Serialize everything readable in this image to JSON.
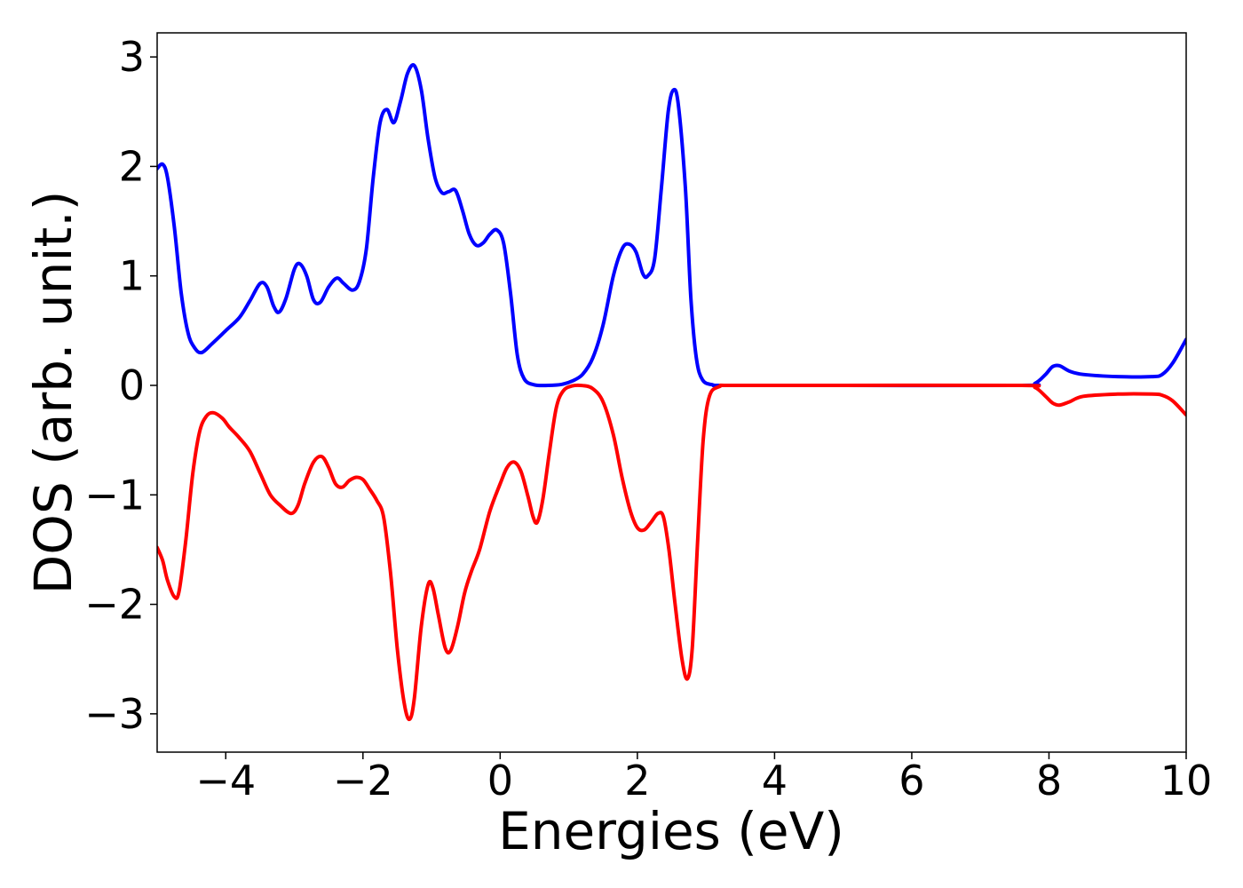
{
  "chart_data": {
    "type": "line",
    "title": "",
    "xlabel": "Energies (eV)",
    "ylabel": "DOS (arb. unit.)",
    "xlim": [
      -5,
      10
    ],
    "ylim": [
      -3.35,
      3.22
    ],
    "xticks": [
      -4,
      -2,
      0,
      2,
      4,
      6,
      8,
      10
    ],
    "xtick_labels": [
      "−4",
      "−2",
      "0",
      "2",
      "4",
      "6",
      "8",
      "10"
    ],
    "yticks": [
      3,
      2,
      1,
      0,
      -1,
      -2,
      -3
    ],
    "ytick_labels": [
      "3",
      "2",
      "1",
      "0",
      "−1",
      "−2",
      "−3"
    ],
    "grid": false,
    "legend": "none",
    "series": [
      {
        "color": "#0000ff",
        "points": [
          [
            -5.0,
            1.98
          ],
          [
            -4.92,
            2.02
          ],
          [
            -4.85,
            1.9
          ],
          [
            -4.75,
            1.45
          ],
          [
            -4.65,
            0.85
          ],
          [
            -4.55,
            0.48
          ],
          [
            -4.45,
            0.34
          ],
          [
            -4.35,
            0.3
          ],
          [
            -4.2,
            0.38
          ],
          [
            -4.0,
            0.5
          ],
          [
            -3.8,
            0.62
          ],
          [
            -3.65,
            0.77
          ],
          [
            -3.5,
            0.93
          ],
          [
            -3.4,
            0.9
          ],
          [
            -3.3,
            0.72
          ],
          [
            -3.22,
            0.67
          ],
          [
            -3.12,
            0.8
          ],
          [
            -3.0,
            1.06
          ],
          [
            -2.92,
            1.11
          ],
          [
            -2.82,
            1.0
          ],
          [
            -2.72,
            0.78
          ],
          [
            -2.62,
            0.76
          ],
          [
            -2.5,
            0.9
          ],
          [
            -2.38,
            0.98
          ],
          [
            -2.28,
            0.93
          ],
          [
            -2.15,
            0.87
          ],
          [
            -2.05,
            0.95
          ],
          [
            -1.95,
            1.25
          ],
          [
            -1.85,
            1.9
          ],
          [
            -1.75,
            2.4
          ],
          [
            -1.65,
            2.52
          ],
          [
            -1.55,
            2.4
          ],
          [
            -1.45,
            2.6
          ],
          [
            -1.35,
            2.85
          ],
          [
            -1.25,
            2.92
          ],
          [
            -1.15,
            2.7
          ],
          [
            -1.05,
            2.25
          ],
          [
            -0.95,
            1.9
          ],
          [
            -0.85,
            1.76
          ],
          [
            -0.75,
            1.77
          ],
          [
            -0.65,
            1.78
          ],
          [
            -0.55,
            1.6
          ],
          [
            -0.45,
            1.38
          ],
          [
            -0.35,
            1.28
          ],
          [
            -0.25,
            1.3
          ],
          [
            -0.15,
            1.38
          ],
          [
            -0.05,
            1.42
          ],
          [
            0.05,
            1.3
          ],
          [
            0.15,
            0.85
          ],
          [
            0.25,
            0.28
          ],
          [
            0.35,
            0.06
          ],
          [
            0.5,
            0.005
          ],
          [
            0.7,
            0.0
          ],
          [
            0.9,
            0.01
          ],
          [
            1.05,
            0.04
          ],
          [
            1.2,
            0.1
          ],
          [
            1.35,
            0.25
          ],
          [
            1.5,
            0.55
          ],
          [
            1.65,
            1.0
          ],
          [
            1.78,
            1.25
          ],
          [
            1.88,
            1.29
          ],
          [
            1.98,
            1.22
          ],
          [
            2.08,
            1.02
          ],
          [
            2.15,
            1.0
          ],
          [
            2.25,
            1.15
          ],
          [
            2.35,
            1.8
          ],
          [
            2.45,
            2.5
          ],
          [
            2.53,
            2.7
          ],
          [
            2.6,
            2.55
          ],
          [
            2.7,
            1.8
          ],
          [
            2.78,
            0.8
          ],
          [
            2.86,
            0.25
          ],
          [
            2.95,
            0.05
          ],
          [
            3.1,
            0.005
          ],
          [
            3.3,
            0.0
          ],
          [
            5.0,
            0.0
          ],
          [
            7.6,
            0.0
          ],
          [
            7.8,
            0.02
          ],
          [
            7.95,
            0.1
          ],
          [
            8.05,
            0.17
          ],
          [
            8.15,
            0.18
          ],
          [
            8.3,
            0.13
          ],
          [
            8.5,
            0.1
          ],
          [
            9.0,
            0.08
          ],
          [
            9.5,
            0.08
          ],
          [
            9.65,
            0.1
          ],
          [
            9.8,
            0.2
          ],
          [
            10.0,
            0.42
          ]
        ]
      },
      {
        "color": "#ff0000",
        "points": [
          [
            -5.0,
            -1.48
          ],
          [
            -4.92,
            -1.6
          ],
          [
            -4.85,
            -1.78
          ],
          [
            -4.75,
            -1.93
          ],
          [
            -4.68,
            -1.88
          ],
          [
            -4.58,
            -1.4
          ],
          [
            -4.48,
            -0.8
          ],
          [
            -4.38,
            -0.42
          ],
          [
            -4.28,
            -0.28
          ],
          [
            -4.18,
            -0.25
          ],
          [
            -4.05,
            -0.3
          ],
          [
            -3.95,
            -0.38
          ],
          [
            -3.8,
            -0.48
          ],
          [
            -3.65,
            -0.6
          ],
          [
            -3.5,
            -0.8
          ],
          [
            -3.35,
            -1.0
          ],
          [
            -3.2,
            -1.1
          ],
          [
            -3.05,
            -1.17
          ],
          [
            -2.95,
            -1.1
          ],
          [
            -2.85,
            -0.9
          ],
          [
            -2.72,
            -0.7
          ],
          [
            -2.6,
            -0.65
          ],
          [
            -2.5,
            -0.75
          ],
          [
            -2.4,
            -0.9
          ],
          [
            -2.3,
            -0.93
          ],
          [
            -2.2,
            -0.87
          ],
          [
            -2.1,
            -0.84
          ],
          [
            -2.0,
            -0.86
          ],
          [
            -1.9,
            -0.95
          ],
          [
            -1.8,
            -1.05
          ],
          [
            -1.7,
            -1.2
          ],
          [
            -1.6,
            -1.7
          ],
          [
            -1.5,
            -2.4
          ],
          [
            -1.4,
            -2.9
          ],
          [
            -1.32,
            -3.05
          ],
          [
            -1.25,
            -2.85
          ],
          [
            -1.15,
            -2.2
          ],
          [
            -1.05,
            -1.82
          ],
          [
            -0.98,
            -1.85
          ],
          [
            -0.9,
            -2.1
          ],
          [
            -0.8,
            -2.4
          ],
          [
            -0.72,
            -2.42
          ],
          [
            -0.62,
            -2.2
          ],
          [
            -0.52,
            -1.9
          ],
          [
            -0.42,
            -1.7
          ],
          [
            -0.3,
            -1.5
          ],
          [
            -0.15,
            -1.15
          ],
          [
            0.0,
            -0.9
          ],
          [
            0.1,
            -0.75
          ],
          [
            0.2,
            -0.7
          ],
          [
            0.3,
            -0.78
          ],
          [
            0.4,
            -1.0
          ],
          [
            0.48,
            -1.2
          ],
          [
            0.54,
            -1.25
          ],
          [
            0.62,
            -1.05
          ],
          [
            0.72,
            -0.6
          ],
          [
            0.82,
            -0.2
          ],
          [
            0.92,
            -0.05
          ],
          [
            1.05,
            -0.005
          ],
          [
            1.2,
            -0.002
          ],
          [
            1.35,
            -0.03
          ],
          [
            1.5,
            -0.15
          ],
          [
            1.65,
            -0.45
          ],
          [
            1.78,
            -0.85
          ],
          [
            1.9,
            -1.15
          ],
          [
            2.0,
            -1.3
          ],
          [
            2.1,
            -1.32
          ],
          [
            2.2,
            -1.25
          ],
          [
            2.3,
            -1.17
          ],
          [
            2.38,
            -1.2
          ],
          [
            2.46,
            -1.5
          ],
          [
            2.55,
            -2.0
          ],
          [
            2.65,
            -2.5
          ],
          [
            2.73,
            -2.68
          ],
          [
            2.8,
            -2.4
          ],
          [
            2.88,
            -1.4
          ],
          [
            2.96,
            -0.5
          ],
          [
            3.05,
            -0.1
          ],
          [
            3.2,
            -0.01
          ],
          [
            3.4,
            0.0
          ],
          [
            5.0,
            0.0
          ],
          [
            7.6,
            0.0
          ],
          [
            7.8,
            -0.02
          ],
          [
            7.95,
            -0.1
          ],
          [
            8.05,
            -0.16
          ],
          [
            8.15,
            -0.18
          ],
          [
            8.3,
            -0.15
          ],
          [
            8.5,
            -0.1
          ],
          [
            9.0,
            -0.08
          ],
          [
            9.5,
            -0.08
          ],
          [
            9.65,
            -0.09
          ],
          [
            9.8,
            -0.14
          ],
          [
            10.0,
            -0.27
          ]
        ]
      }
    ]
  }
}
